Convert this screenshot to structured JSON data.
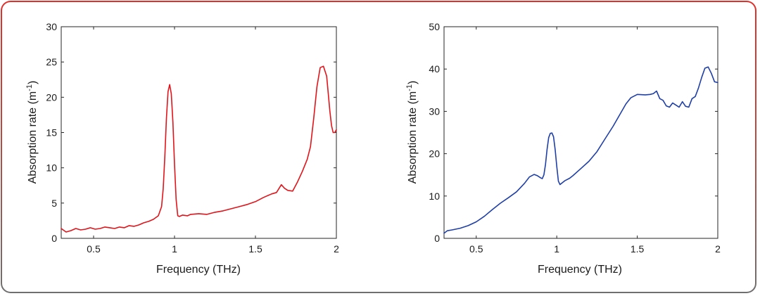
{
  "chart_data": [
    {
      "type": "line",
      "xlabel": "Frequency (THz)",
      "ylabel_main": "Absorption rate (m",
      "ylabel_sup": "-1",
      "ylabel_close": ")",
      "xlim": [
        0.3,
        2.0
      ],
      "ylim": [
        0,
        30
      ],
      "xticks": [
        0.5,
        1,
        1.5,
        2
      ],
      "xtick_labels": [
        "0.5",
        "1",
        "1.5",
        "2"
      ],
      "yticks": [
        0,
        5,
        10,
        15,
        20,
        25,
        30
      ],
      "ytick_labels": [
        "0",
        "5",
        "10",
        "15",
        "20",
        "25",
        "30"
      ],
      "grid": false,
      "color": "#e0151b",
      "series": [
        {
          "x": [
            0.3,
            0.33,
            0.36,
            0.39,
            0.42,
            0.45,
            0.48,
            0.51,
            0.54,
            0.57,
            0.6,
            0.63,
            0.66,
            0.69,
            0.72,
            0.75,
            0.78,
            0.81,
            0.84,
            0.87,
            0.9,
            0.92,
            0.93,
            0.94,
            0.95,
            0.96,
            0.97,
            0.98,
            0.99,
            1.0,
            1.01,
            1.02,
            1.03,
            1.05,
            1.08,
            1.1,
            1.15,
            1.2,
            1.25,
            1.3,
            1.35,
            1.4,
            1.45,
            1.5,
            1.55,
            1.6,
            1.63,
            1.66,
            1.68,
            1.7,
            1.73,
            1.76,
            1.79,
            1.82,
            1.84,
            1.86,
            1.88,
            1.9,
            1.92,
            1.94,
            1.95,
            1.96,
            1.97,
            1.98,
            1.99,
            2.0
          ],
          "y": [
            1.4,
            0.9,
            1.1,
            1.4,
            1.2,
            1.3,
            1.5,
            1.3,
            1.4,
            1.6,
            1.5,
            1.4,
            1.6,
            1.5,
            1.8,
            1.7,
            1.9,
            2.2,
            2.4,
            2.7,
            3.2,
            4.5,
            7.0,
            11.5,
            17.0,
            20.8,
            21.8,
            20.5,
            16.5,
            10.5,
            5.5,
            3.2,
            3.1,
            3.3,
            3.2,
            3.4,
            3.5,
            3.4,
            3.7,
            3.9,
            4.2,
            4.5,
            4.8,
            5.2,
            5.8,
            6.3,
            6.5,
            7.6,
            7.1,
            6.8,
            6.7,
            8.0,
            9.5,
            11.2,
            13.0,
            17.0,
            21.5,
            24.2,
            24.4,
            23.0,
            20.5,
            18.0,
            16.0,
            15.0,
            15.0,
            15.4
          ]
        }
      ]
    },
    {
      "type": "line",
      "xlabel": "Frequency (THz)",
      "ylabel_main": "Absorption rate (m",
      "ylabel_sup": "-1",
      "ylabel_close": ")",
      "xlim": [
        0.3,
        2.0
      ],
      "ylim": [
        0,
        50
      ],
      "xticks": [
        0.5,
        1,
        1.5,
        2
      ],
      "xtick_labels": [
        "0.5",
        "1",
        "1.5",
        "2"
      ],
      "yticks": [
        0,
        10,
        20,
        30,
        40,
        50
      ],
      "ytick_labels": [
        "0",
        "10",
        "20",
        "30",
        "40",
        "50"
      ],
      "grid": false,
      "color": "#1f3fa6",
      "series": [
        {
          "x": [
            0.3,
            0.32,
            0.35,
            0.4,
            0.45,
            0.5,
            0.55,
            0.6,
            0.65,
            0.7,
            0.75,
            0.8,
            0.83,
            0.86,
            0.88,
            0.9,
            0.91,
            0.92,
            0.93,
            0.94,
            0.95,
            0.96,
            0.97,
            0.98,
            0.99,
            1.0,
            1.01,
            1.02,
            1.03,
            1.05,
            1.08,
            1.1,
            1.15,
            1.2,
            1.25,
            1.3,
            1.35,
            1.4,
            1.43,
            1.46,
            1.5,
            1.55,
            1.58,
            1.6,
            1.62,
            1.64,
            1.66,
            1.68,
            1.7,
            1.72,
            1.74,
            1.76,
            1.78,
            1.8,
            1.82,
            1.84,
            1.86,
            1.88,
            1.9,
            1.92,
            1.94,
            1.96,
            1.98,
            2.0
          ],
          "y": [
            1.2,
            1.8,
            2.0,
            2.4,
            3.0,
            3.9,
            5.2,
            6.8,
            8.3,
            9.6,
            11.0,
            13.0,
            14.5,
            15.1,
            14.8,
            14.3,
            14.1,
            15.0,
            17.5,
            21.0,
            23.8,
            24.8,
            24.9,
            24.0,
            21.0,
            17.0,
            13.5,
            12.7,
            13.0,
            13.6,
            14.2,
            14.8,
            16.5,
            18.2,
            20.5,
            23.5,
            26.5,
            29.8,
            31.8,
            33.2,
            34.0,
            33.9,
            34.0,
            34.2,
            34.8,
            33.0,
            32.6,
            31.3,
            31.0,
            32.0,
            31.5,
            31.0,
            32.3,
            31.2,
            31.0,
            33.0,
            33.5,
            35.5,
            38.0,
            40.2,
            40.5,
            39.0,
            37.0,
            36.8
          ]
        }
      ]
    }
  ]
}
